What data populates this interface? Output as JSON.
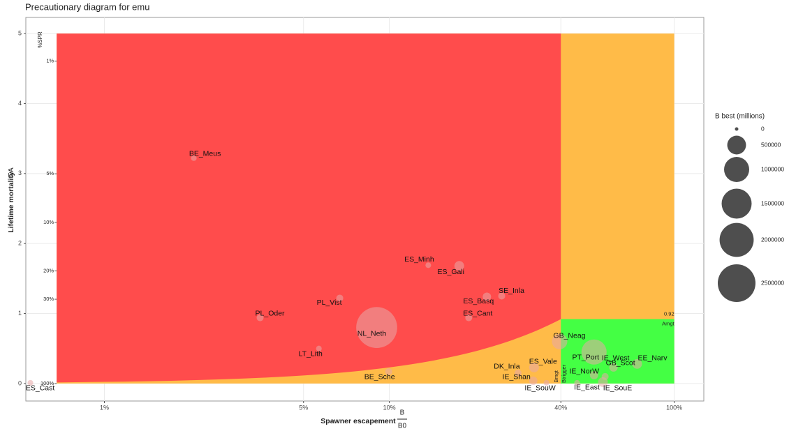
{
  "chart_data": {
    "type": "bubble",
    "title": "Precautionary diagram for emu",
    "x_label": "Spawner escapement",
    "x_label_fraction": {
      "numerator": "B",
      "denominator": "B0"
    },
    "y_label": "Lifetime mortality",
    "y_label_symbol": "ΣA",
    "log_x": true,
    "xlim": [
      0.53,
      127
    ],
    "xticks": [
      {
        "value": 1,
        "label": "1%"
      },
      {
        "value": 5,
        "label": "5%"
      },
      {
        "value": 10,
        "label": "10%"
      },
      {
        "value": 40,
        "label": "40%"
      },
      {
        "value": 100,
        "label": "100%"
      }
    ],
    "ylim": [
      -0.25,
      5.23
    ],
    "yticks": [
      0,
      1,
      2,
      3,
      4,
      5
    ],
    "spr_label": "%SPR",
    "spr_ticks": [
      {
        "value": 1,
        "label": "1%"
      },
      {
        "value": 5,
        "label": "5%"
      },
      {
        "value": 10,
        "label": "10%"
      },
      {
        "value": 20,
        "label": "20%"
      },
      {
        "value": 30,
        "label": "30%"
      },
      {
        "value": 100,
        "label": "100%"
      }
    ],
    "grid": true,
    "regions": {
      "x_start": 0.68,
      "Bmgt": 40,
      "Bmax": 100,
      "Amgt": 0.92,
      "ymax": 5,
      "colors": {
        "red": "#ff4c4c",
        "orange": "#ffbb48",
        "green": "#44ff44"
      }
    },
    "annotations": {
      "amgt_value": "0.92",
      "amgt_label": "Amgt",
      "bmgt_label": "Bmgt",
      "btrigger_label": "Btrigger"
    },
    "bubble_color": "#e8a8a8",
    "points": [
      {
        "name": "ES_Cast",
        "x": 0.55,
        "y": 0.01,
        "size": 10000
      },
      {
        "name": "BE_Meus",
        "x": 2.06,
        "y": 3.22,
        "size": 10000
      },
      {
        "name": "PL_Oder",
        "x": 3.52,
        "y": 0.94,
        "size": 26000
      },
      {
        "name": "PL_Vist",
        "x": 6.7,
        "y": 1.22,
        "size": 26000
      },
      {
        "name": "LT_Lith",
        "x": 5.66,
        "y": 0.5,
        "size": 10000
      },
      {
        "name": "NL_Neth",
        "x": 9.03,
        "y": 0.8,
        "size": 3000000
      },
      {
        "name": "BE_Sche",
        "x": 9.95,
        "y": 0.17,
        "size": 26000
      },
      {
        "name": "ES_Minh",
        "x": 13.7,
        "y": 1.69,
        "size": 10000
      },
      {
        "name": "ES_Gali",
        "x": 17.6,
        "y": 1.68,
        "size": 84000
      },
      {
        "name": "ES_Basq",
        "x": 22,
        "y": 1.24,
        "size": 51000
      },
      {
        "name": "ES_Cant",
        "x": 19,
        "y": 0.94,
        "size": 26000
      },
      {
        "name": "SE_Inla",
        "x": 24.8,
        "y": 1.25,
        "size": 26000
      },
      {
        "name": "GB_Neag",
        "x": 39.6,
        "y": 0.6,
        "size": 300000
      },
      {
        "name": "PT_Port",
        "x": 52.3,
        "y": 0.45,
        "size": 1000000
      },
      {
        "name": "EE_Narv",
        "x": 74.1,
        "y": 0.28,
        "size": 84000
      },
      {
        "name": "GB_Scot",
        "x": 61.2,
        "y": 0.23,
        "size": 51000
      },
      {
        "name": "DK_Inla",
        "x": 28.3,
        "y": 0.15,
        "size": 26000
      },
      {
        "name": "ES_Vale",
        "x": 32.2,
        "y": 0.23,
        "size": 84000
      },
      {
        "name": "IE_Shan",
        "x": 32,
        "y": 0.04,
        "size": 51000
      },
      {
        "name": "IE_SouW",
        "x": 35.6,
        "y": 0.01,
        "size": 10000
      },
      {
        "name": "IE_NorW",
        "x": 52.3,
        "y": 0.12,
        "size": 51000
      },
      {
        "name": "IE_East",
        "x": 45.6,
        "y": 0.01,
        "size": 10000
      },
      {
        "name": "IE_West",
        "x": 57.2,
        "y": 0.1,
        "size": 26000
      },
      {
        "name": "IE_SouE",
        "x": 56.2,
        "y": 0.02,
        "size": 84000
      }
    ],
    "legend_title": "B best (millions)",
    "legend_sizes": [
      0,
      500000,
      1000000,
      1500000,
      2000000,
      2500000
    ],
    "legend_color": "#444444"
  }
}
